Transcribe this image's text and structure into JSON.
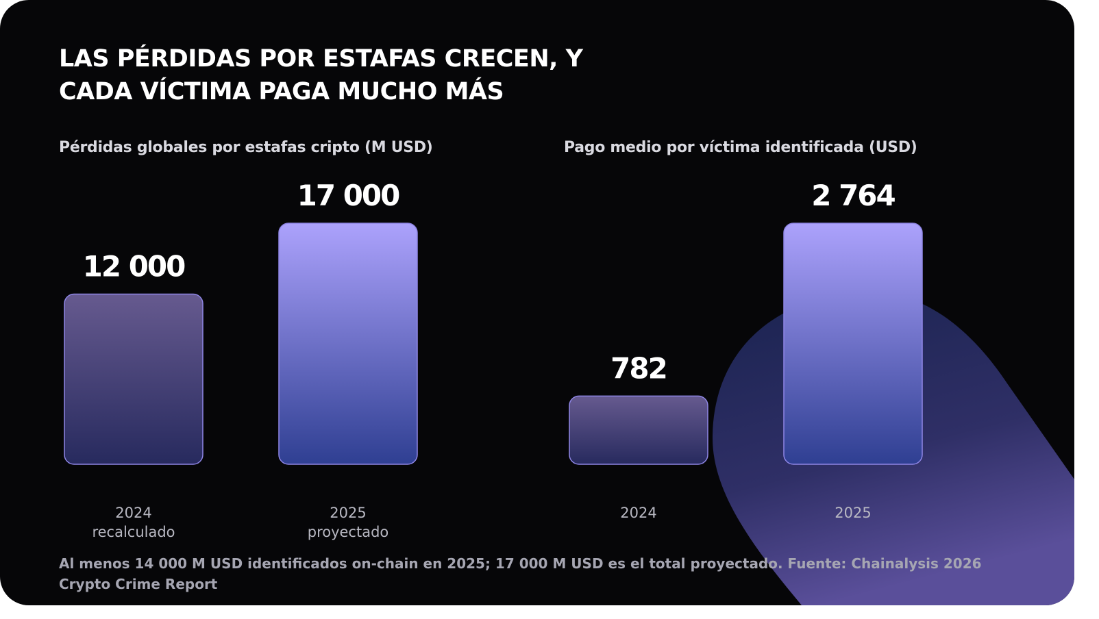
{
  "title_lines": [
    "Las pérdidas por estafas crecen, y",
    "cada víctima paga mucho más"
  ],
  "footnote": "Al menos 14 000 M USD identificados on-chain en 2025; 17 000 M USD es el total proyectado. Fuente: Chainalysis 2026 Crypto Crime Report",
  "colors": {
    "background": "#060608",
    "bar_2024_top": "#665a8f",
    "bar_2024_bottom": "#272a5e",
    "bar_2025_top": "#aca2fc",
    "bar_2025_bottom": "#2f3f92",
    "bar_stroke": "#8f86e6"
  },
  "chart_data": [
    {
      "type": "bar",
      "title": "Pérdidas globales por estafas cripto (M USD)",
      "categories": [
        [
          "2024",
          "recalculado"
        ],
        [
          "2025",
          "proyectado"
        ]
      ],
      "values": [
        12000,
        17000
      ],
      "value_labels": [
        "12 000",
        "17 000"
      ],
      "ylim": [
        0,
        17000
      ],
      "grid": false
    },
    {
      "type": "bar",
      "title": "Pago medio por víctima identificada (USD)",
      "categories": [
        [
          "2024"
        ],
        [
          "2025"
        ]
      ],
      "values": [
        782,
        2764
      ],
      "value_labels": [
        "782",
        "2 764"
      ],
      "ylim": [
        0,
        2764
      ],
      "grid": false
    }
  ]
}
